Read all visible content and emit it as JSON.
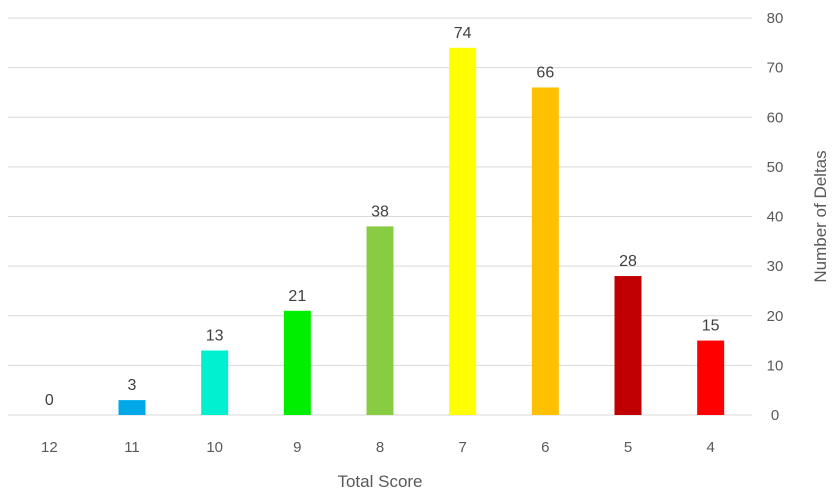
{
  "chart_data": {
    "type": "bar",
    "categories": [
      "12",
      "11",
      "10",
      "9",
      "8",
      "7",
      "6",
      "5",
      "4"
    ],
    "values": [
      0,
      3,
      13,
      21,
      38,
      74,
      66,
      28,
      15
    ],
    "colors": [
      "#00b0f0",
      "#00a8e8",
      "#00f0d0",
      "#00ee00",
      "#88cc44",
      "#ffff00",
      "#ffc000",
      "#c00000",
      "#ff0000"
    ],
    "xlabel": "Total Score",
    "ylabel": "Number of Deltas",
    "ylim": [
      0,
      80
    ],
    "yticks": [
      "0",
      "10",
      "20",
      "30",
      "40",
      "50",
      "60",
      "70",
      "80"
    ],
    "y_axis_position": "right",
    "grid": true,
    "data_labels": true
  }
}
